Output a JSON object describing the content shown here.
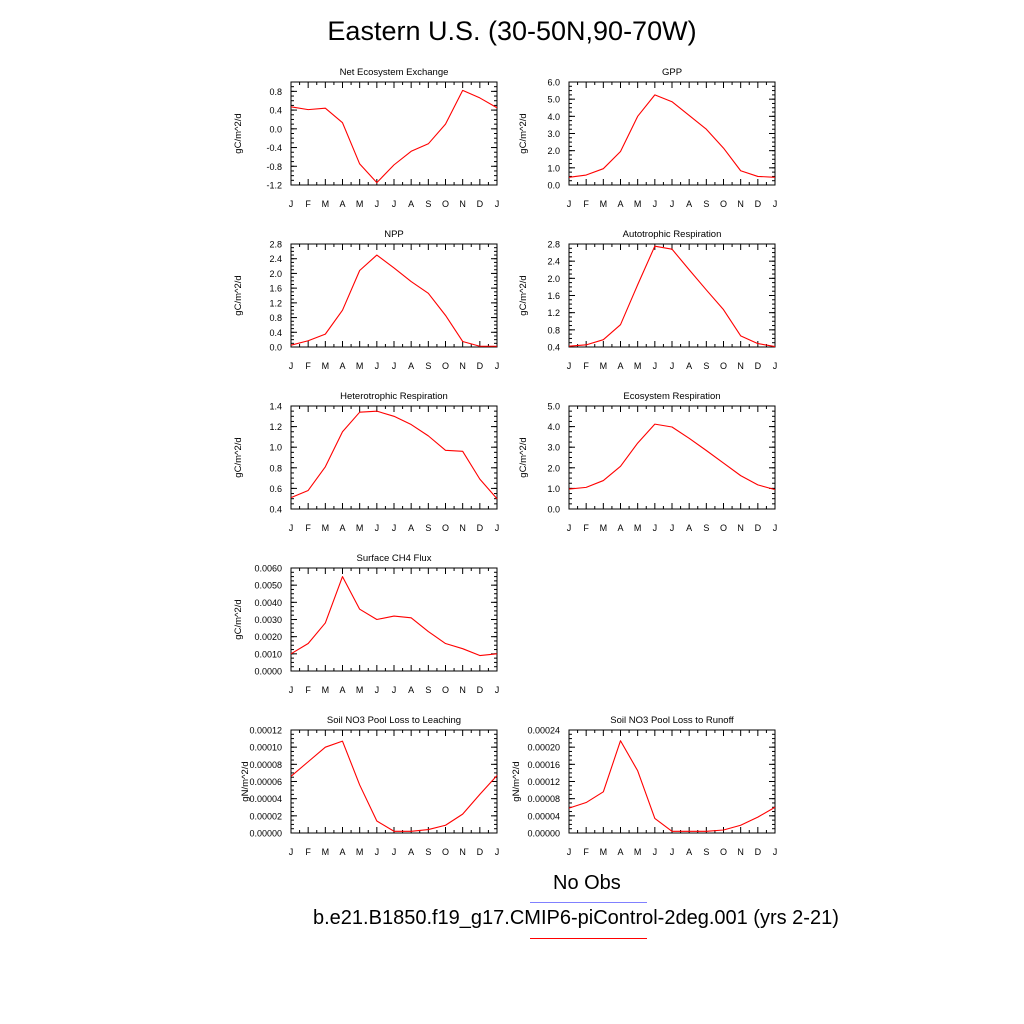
{
  "page": {
    "title": "Eastern U.S. (30-50N,90-70W)"
  },
  "legend": {
    "obs_label": "No Obs",
    "obs_color": "#8080ff",
    "model_label": "b.e21.B1850.f19_g17.CMIP6-piControl-2deg.001 (yrs 2-21)",
    "model_color": "#ff0000"
  },
  "style": {
    "series_color": "#ff0000",
    "axis_color": "#000000"
  },
  "chart_data": [
    {
      "type": "line",
      "title": "Net Ecosystem Exchange",
      "ylabel": "gC/m^2/d",
      "ylim": [
        -1.2,
        1.0
      ],
      "yticks": [
        "0.8",
        "0.4",
        "0.0",
        "-0.4",
        "-0.8",
        "-1.2"
      ],
      "ytick_values": [
        0.8,
        0.4,
        0.0,
        -0.4,
        -0.8,
        -1.2
      ],
      "x": [
        "J",
        "F",
        "M",
        "A",
        "M",
        "J",
        "J",
        "A",
        "S",
        "O",
        "N",
        "D",
        "J"
      ],
      "series": [
        {
          "values": [
            0.47,
            0.41,
            0.44,
            0.13,
            -0.75,
            -1.15,
            -0.77,
            -0.48,
            -0.32,
            0.1,
            0.82,
            0.66,
            0.45
          ]
        }
      ]
    },
    {
      "type": "line",
      "title": "GPP",
      "ylabel": "gC/m^2/d",
      "ylim": [
        0.0,
        6.0
      ],
      "yticks": [
        "6.0",
        "5.0",
        "4.0",
        "3.0",
        "2.0",
        "1.0",
        "0.0"
      ],
      "ytick_values": [
        6.0,
        5.0,
        4.0,
        3.0,
        2.0,
        1.0,
        0.0
      ],
      "x": [
        "J",
        "F",
        "M",
        "A",
        "M",
        "J",
        "J",
        "A",
        "S",
        "O",
        "N",
        "D",
        "J"
      ],
      "series": [
        {
          "values": [
            0.45,
            0.58,
            0.95,
            1.95,
            4.0,
            5.25,
            4.85,
            4.05,
            3.25,
            2.15,
            0.83,
            0.5,
            0.45
          ]
        }
      ]
    },
    {
      "type": "line",
      "title": "NPP",
      "ylabel": "gC/m^2/d",
      "ylim": [
        0.0,
        2.8
      ],
      "yticks": [
        "2.8",
        "2.4",
        "2.0",
        "1.6",
        "1.2",
        "0.8",
        "0.4",
        "0.0"
      ],
      "ytick_values": [
        2.8,
        2.4,
        2.0,
        1.6,
        1.2,
        0.8,
        0.4,
        0.0
      ],
      "x": [
        "J",
        "F",
        "M",
        "A",
        "M",
        "J",
        "J",
        "A",
        "S",
        "O",
        "N",
        "D",
        "J"
      ],
      "series": [
        {
          "values": [
            0.05,
            0.17,
            0.35,
            1.0,
            2.08,
            2.5,
            2.15,
            1.78,
            1.46,
            0.86,
            0.15,
            0.02,
            0.02
          ]
        }
      ]
    },
    {
      "type": "line",
      "title": "Autotrophic Respiration",
      "ylabel": "gC/m^2/d",
      "ylim": [
        0.4,
        2.8
      ],
      "yticks": [
        "2.8",
        "2.4",
        "2.0",
        "1.6",
        "1.2",
        "0.8",
        "0.4"
      ],
      "ytick_values": [
        2.8,
        2.4,
        2.0,
        1.6,
        1.2,
        0.8,
        0.4
      ],
      "x": [
        "J",
        "F",
        "M",
        "A",
        "M",
        "J",
        "J",
        "A",
        "S",
        "O",
        "N",
        "D",
        "J"
      ],
      "series": [
        {
          "values": [
            0.42,
            0.45,
            0.57,
            0.92,
            1.85,
            2.75,
            2.68,
            2.2,
            1.73,
            1.27,
            0.66,
            0.48,
            0.41
          ]
        }
      ]
    },
    {
      "type": "line",
      "title": "Heterotrophic Respiration",
      "ylabel": "gC/m^2/d",
      "ylim": [
        0.4,
        1.4
      ],
      "yticks": [
        "1.4",
        "1.2",
        "1.0",
        "0.8",
        "0.6",
        "0.4"
      ],
      "ytick_values": [
        1.4,
        1.2,
        1.0,
        0.8,
        0.6,
        0.4
      ],
      "x": [
        "J",
        "F",
        "M",
        "A",
        "M",
        "J",
        "J",
        "A",
        "S",
        "O",
        "N",
        "D",
        "J"
      ],
      "series": [
        {
          "values": [
            0.51,
            0.58,
            0.81,
            1.15,
            1.34,
            1.35,
            1.3,
            1.22,
            1.11,
            0.97,
            0.96,
            0.69,
            0.5
          ]
        }
      ]
    },
    {
      "type": "line",
      "title": "Ecosystem Respiration",
      "ylabel": "gC/m^2/d",
      "ylim": [
        0.0,
        5.0
      ],
      "yticks": [
        "5.0",
        "4.0",
        "3.0",
        "2.0",
        "1.0",
        "0.0"
      ],
      "ytick_values": [
        5.0,
        4.0,
        3.0,
        2.0,
        1.0,
        0.0
      ],
      "x": [
        "J",
        "F",
        "M",
        "A",
        "M",
        "J",
        "J",
        "A",
        "S",
        "O",
        "N",
        "D",
        "J"
      ],
      "series": [
        {
          "values": [
            0.97,
            1.05,
            1.38,
            2.07,
            3.2,
            4.12,
            3.98,
            3.43,
            2.84,
            2.23,
            1.62,
            1.17,
            0.94
          ]
        }
      ]
    },
    {
      "type": "line",
      "title": "Surface CH4 Flux",
      "ylabel": "gC/m^2/d",
      "ylim": [
        0.0,
        0.006
      ],
      "yticks": [
        "0.0060",
        "0.0050",
        "0.0040",
        "0.0030",
        "0.0020",
        "0.0010",
        "0.0000"
      ],
      "ytick_values": [
        0.006,
        0.005,
        0.004,
        0.003,
        0.002,
        0.001,
        0.0
      ],
      "x": [
        "J",
        "F",
        "M",
        "A",
        "M",
        "J",
        "J",
        "A",
        "S",
        "O",
        "N",
        "D",
        "J"
      ],
      "series": [
        {
          "values": [
            0.001,
            0.0016,
            0.0028,
            0.0055,
            0.0036,
            0.003,
            0.0032,
            0.0031,
            0.0023,
            0.0016,
            0.0013,
            0.0009,
            0.001
          ]
        }
      ]
    },
    {
      "type": "line",
      "title": "Soil NO3 Pool Loss to Leaching",
      "ylabel": "gN/m^2/d",
      "ylim": [
        0.0,
        0.00012
      ],
      "yticks": [
        "0.00012",
        "0.00010",
        "0.00008",
        "0.00006",
        "0.00004",
        "0.00002",
        "0.00000"
      ],
      "ytick_values": [
        0.00012,
        0.0001,
        8e-05,
        6e-05,
        4e-05,
        2e-05,
        0.0
      ],
      "x": [
        "J",
        "F",
        "M",
        "A",
        "M",
        "J",
        "J",
        "A",
        "S",
        "O",
        "N",
        "D",
        "J"
      ],
      "series": [
        {
          "values": [
            6.6e-05,
            8.3e-05,
            0.0001,
            0.000107,
            5.6e-05,
            1.4e-05,
            2e-06,
            2e-06,
            4e-06,
            9e-06,
            2.2e-05,
            4.5e-05,
            6.7e-05
          ]
        }
      ]
    },
    {
      "type": "line",
      "title": "Soil NO3 Pool Loss to Runoff",
      "ylabel": "gN/m^2/d",
      "ylim": [
        0.0,
        0.00024
      ],
      "yticks": [
        "0.00024",
        "0.00020",
        "0.00016",
        "0.00012",
        "0.00008",
        "0.00004",
        "0.00000"
      ],
      "ytick_values": [
        0.00024,
        0.0002,
        0.00016,
        0.00012,
        8e-05,
        4e-05,
        0.0
      ],
      "x": [
        "J",
        "F",
        "M",
        "A",
        "M",
        "J",
        "J",
        "A",
        "S",
        "O",
        "N",
        "D",
        "J"
      ],
      "series": [
        {
          "values": [
            5.8e-05,
            7.1e-05,
            9.6e-05,
            0.000215,
            0.000145,
            3.4e-05,
            4e-06,
            4e-06,
            4e-06,
            7e-06,
            1.8e-05,
            3.7e-05,
            6e-05
          ]
        }
      ]
    }
  ]
}
